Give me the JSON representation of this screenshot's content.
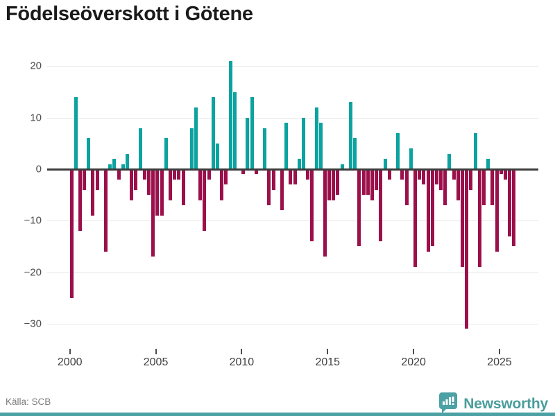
{
  "title": "Födelseöverskott i Götene",
  "source": {
    "label": "Källa: SCB"
  },
  "branding": {
    "name": "Newsworthy"
  },
  "colors": {
    "positive": "#0ba3a0",
    "negative": "#9b104b",
    "zero_line": "#3c3c3c",
    "grid": "#e8e8e8",
    "axis_text": "#4d4d4d",
    "brand_teal": "#4a9d9b",
    "bottom_strip": "#4ba1a4",
    "background": "#ffffff"
  },
  "chart_data": {
    "type": "bar",
    "title": "Födelseöverskott i Götene",
    "x_unit": "quarter",
    "start_year": 2000,
    "end_period": "2025-Q4",
    "xticks": [
      2000,
      2005,
      2010,
      2015,
      2020,
      2025
    ],
    "yticks": [
      20,
      10,
      0,
      -10,
      -20,
      -30
    ],
    "ylim": [
      -31,
      21
    ],
    "grid": "horizontal",
    "legend": "none",
    "positive_color": "#0ba3a0",
    "negative_color": "#9b104b",
    "values": [
      -25,
      14,
      -12,
      -4,
      6,
      -9,
      -4,
      0,
      -16,
      1,
      2,
      -2,
      1,
      3,
      -6,
      -4,
      8,
      -2,
      -5,
      -17,
      -9,
      -9,
      6,
      -6,
      -2,
      -2,
      -7,
      0,
      8,
      12,
      -6,
      -12,
      -2,
      14,
      5,
      -6,
      -3,
      21,
      15,
      0,
      -1,
      10,
      14,
      -1,
      0,
      8,
      -7,
      -4,
      0,
      -8,
      9,
      -3,
      -3,
      2,
      10,
      -2,
      -14,
      12,
      9,
      -17,
      -6,
      -6,
      -5,
      1,
      0,
      13,
      6,
      -15,
      -5,
      -5,
      -6,
      -4,
      -14,
      2,
      -2,
      0,
      7,
      -2,
      -7,
      4,
      -19,
      -2,
      -3,
      -16,
      -15,
      -3,
      -4,
      -7,
      3,
      -2,
      -6,
      -19,
      -31,
      -4,
      7,
      -19,
      -7,
      2,
      -7,
      -16,
      -1,
      -2,
      -13,
      -15
    ]
  }
}
